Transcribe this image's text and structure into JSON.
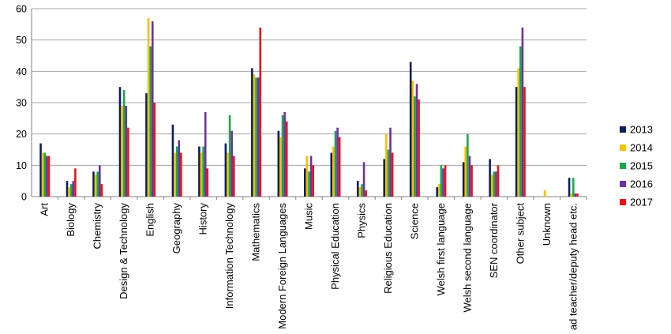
{
  "chart_data": {
    "type": "bar",
    "title": "",
    "xlabel": "",
    "ylabel": "",
    "ylim": [
      0,
      60
    ],
    "yticks": [
      0,
      10,
      20,
      30,
      40,
      50,
      60
    ],
    "grid": true,
    "legend_position": "right",
    "categories": [
      "Art",
      "Biology",
      "Chemistry",
      "Design & Technology",
      "English",
      "Geography",
      "History",
      "Information Technology",
      "Mathematics",
      "Modern Foreign Languages",
      "Music",
      "Physical Education",
      "Physics",
      "Religious Education",
      "Science",
      "Welsh first language",
      "Welsh second language",
      "SEN coordinator",
      "Other subject",
      "Unknown",
      "Head teacher/deputy head etc."
    ],
    "series": [
      {
        "name": "2013",
        "color": "#0d1f5c",
        "values": [
          17,
          5,
          8,
          35,
          33,
          23,
          16,
          17,
          41,
          21,
          9,
          14,
          5,
          12,
          43,
          3,
          11,
          12,
          35,
          0,
          6
        ]
      },
      {
        "name": "2014",
        "color": "#f5c000",
        "values": [
          14,
          3,
          7,
          29,
          57,
          14,
          14,
          14,
          39,
          19,
          13,
          16,
          3,
          20,
          37,
          4,
          16,
          7,
          41,
          2,
          1
        ]
      },
      {
        "name": "2015",
        "color": "#1aa84a",
        "values": [
          14,
          4,
          8,
          34,
          48,
          16,
          16,
          26,
          38,
          26,
          8,
          21,
          4,
          15,
          32,
          10,
          20,
          8,
          48,
          0,
          6
        ]
      },
      {
        "name": "2016",
        "color": "#7030a0",
        "values": [
          13,
          5,
          10,
          29,
          56,
          18,
          27,
          21,
          38,
          27,
          13,
          22,
          11,
          22,
          36,
          9,
          13,
          8,
          54,
          0,
          1
        ]
      },
      {
        "name": "2017",
        "color": "#e8141b",
        "values": [
          13,
          9,
          4,
          22,
          30,
          14,
          9,
          13,
          54,
          24,
          10,
          19,
          2,
          14,
          31,
          10,
          10,
          10,
          35,
          0,
          1
        ]
      }
    ]
  }
}
